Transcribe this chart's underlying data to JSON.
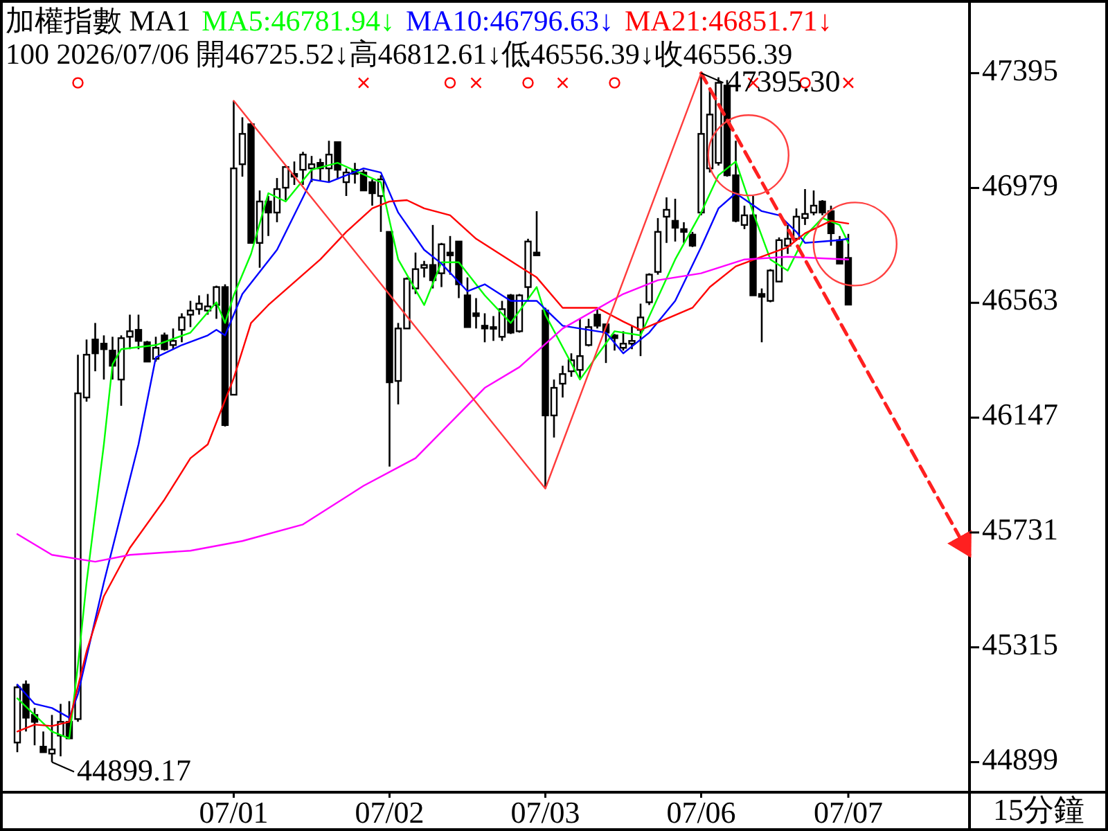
{
  "chart_data": {
    "type": "candlestick",
    "title": "加權指數 MA1",
    "subtitle": "100 2026/07/06 開46725.52↓高46812.61↓低46556.39↓收46556.39",
    "xlabel": "15分鐘",
    "color": "#000000",
    "legend": "top left",
    "ylim": [
      44790,
      47660
    ],
    "yticks": [
      44899,
      45315,
      45731,
      46147,
      46563,
      46979,
      47395
    ],
    "categories": [
      null,
      null,
      null,
      null,
      null,
      null,
      null,
      null,
      null,
      null,
      null,
      null,
      null,
      null,
      null,
      null,
      null,
      null,
      null,
      null,
      null,
      null,
      null,
      null,
      null,
      "07/01",
      null,
      null,
      null,
      null,
      null,
      null,
      null,
      null,
      null,
      null,
      null,
      null,
      null,
      null,
      null,
      null,
      null,
      "07/02",
      null,
      null,
      null,
      null,
      null,
      null,
      null,
      null,
      null,
      null,
      null,
      null,
      null,
      null,
      null,
      null,
      null,
      "07/03",
      null,
      null,
      null,
      null,
      null,
      null,
      null,
      null,
      null,
      null,
      null,
      null,
      null,
      null,
      null,
      null,
      null,
      "07/06",
      null,
      null,
      null,
      null,
      null,
      null,
      null,
      null,
      null,
      null,
      null,
      null,
      null,
      null,
      null,
      null,
      "07/07",
      null,
      null,
      null,
      null,
      null,
      null,
      null,
      null,
      null,
      null,
      null,
      null,
      null,
      null
    ],
    "ohlc": [
      [
        44970,
        45180,
        44935,
        45170
      ],
      [
        45180,
        45195,
        45010,
        45060
      ],
      [
        45070,
        45095,
        44960,
        45045
      ],
      [
        44955,
        45010,
        44935,
        44935
      ],
      [
        44930,
        45070,
        44899.17,
        44945
      ],
      [
        44995,
        45110,
        44920,
        45045
      ],
      [
        45045,
        45120,
        44985,
        44985
      ],
      [
        45055,
        46375,
        45045,
        46235
      ],
      [
        46220,
        46430,
        46205,
        46375
      ],
      [
        46430,
        46490,
        46315,
        46380
      ],
      [
        46415,
        46445,
        46285,
        46395
      ],
      [
        46390,
        46440,
        46285,
        46335
      ],
      [
        46285,
        46445,
        46190,
        46435
      ],
      [
        46440,
        46520,
        46395,
        46460
      ],
      [
        46465,
        46520,
        46395,
        46425
      ],
      [
        46420,
        46425,
        46350,
        46350
      ],
      [
        46360,
        46440,
        46350,
        46400
      ],
      [
        46445,
        46455,
        46390,
        46395
      ],
      [
        46410,
        46470,
        46395,
        46425
      ],
      [
        46465,
        46525,
        46420,
        46510
      ],
      [
        46520,
        46570,
        46475,
        46535
      ],
      [
        46540,
        46590,
        46520,
        46560
      ],
      [
        46535,
        46595,
        46520,
        46550
      ],
      [
        46555,
        46625,
        46505,
        46620
      ],
      [
        46620,
        46630,
        46115,
        46120
      ],
      [
        46230,
        47295,
        46230,
        47050
      ],
      [
        47065,
        47235,
        47020,
        47175
      ],
      [
        47210,
        47215,
        46780,
        46780
      ],
      [
        46780,
        46970,
        46690,
        46930
      ],
      [
        46930,
        46950,
        46805,
        46890
      ],
      [
        46890,
        47015,
        46855,
        46975
      ],
      [
        46980,
        47060,
        46935,
        47055
      ],
      [
        47030,
        47075,
        46990,
        47020
      ],
      [
        47045,
        47110,
        46990,
        47100
      ],
      [
        47050,
        47095,
        47000,
        47065
      ],
      [
        47070,
        47085,
        47005,
        47050
      ],
      [
        47050,
        47150,
        47000,
        47100
      ],
      [
        47145,
        47145,
        47010,
        47045
      ],
      [
        47000,
        47050,
        46950,
        47035
      ],
      [
        47045,
        47070,
        46995,
        47030
      ],
      [
        47035,
        47045,
        46970,
        46970
      ],
      [
        47000,
        47010,
        46915,
        46960
      ],
      [
        46950,
        47025,
        46820,
        47010
      ],
      [
        46820,
        46820,
        45970,
        46275
      ],
      [
        46280,
        46490,
        46195,
        46470
      ],
      [
        46470,
        46655,
        46470,
        46650
      ],
      [
        46615,
        46745,
        46595,
        46685
      ],
      [
        46690,
        46715,
        46655,
        46700
      ],
      [
        46700,
        46845,
        46615,
        46645
      ],
      [
        46670,
        46780,
        46620,
        46775
      ],
      [
        46745,
        46805,
        46665,
        46735
      ],
      [
        46785,
        46785,
        46580,
        46630
      ],
      [
        46590,
        46655,
        46475,
        46475
      ],
      [
        46525,
        46580,
        46470,
        46515
      ],
      [
        46480,
        46525,
        46420,
        46470
      ],
      [
        46475,
        46515,
        46425,
        46470
      ],
      [
        46440,
        46570,
        46425,
        46540
      ],
      [
        46590,
        46595,
        46450,
        46455
      ],
      [
        46460,
        46595,
        46455,
        46590
      ],
      [
        46620,
        46795,
        46570,
        46785
      ],
      [
        46745,
        46895,
        46735,
        46735
      ],
      [
        46535,
        46545,
        45890,
        46155
      ],
      [
        46155,
        46285,
        46075,
        46255
      ],
      [
        46270,
        46335,
        46220,
        46305
      ],
      [
        46315,
        46380,
        46295,
        46355
      ],
      [
        46320,
        46505,
        46290,
        46370
      ],
      [
        46410,
        46505,
        46405,
        46475
      ],
      [
        46520,
        46540,
        46470,
        46480
      ],
      [
        46485,
        46485,
        46345,
        46455
      ],
      [
        46445,
        46450,
        46390,
        46435
      ],
      [
        46400,
        46460,
        46390,
        46415
      ],
      [
        46415,
        46480,
        46395,
        46425
      ],
      [
        46465,
        46560,
        46370,
        46510
      ],
      [
        46565,
        46670,
        46555,
        46665
      ],
      [
        46675,
        46870,
        46665,
        46820
      ],
      [
        46875,
        46945,
        46780,
        46900
      ],
      [
        46860,
        46940,
        46785,
        46835
      ],
      [
        46830,
        46855,
        46780,
        46820
      ],
      [
        46810,
        46820,
        46765,
        46770
      ],
      [
        46890,
        47395.3,
        46880,
        47175
      ],
      [
        47050,
        47335,
        47035,
        47245
      ],
      [
        47070,
        47380,
        47060,
        47360
      ],
      [
        47350,
        47370,
        47020,
        47025
      ],
      [
        47025,
        47150,
        46855,
        46860
      ],
      [
        46845,
        46915,
        46830,
        46880
      ],
      [
        46880,
        46950,
        46590,
        46590
      ],
      [
        46595,
        46615,
        46420,
        46585
      ],
      [
        46570,
        46685,
        46565,
        46680
      ],
      [
        46640,
        46800,
        46640,
        46790
      ],
      [
        46770,
        46845,
        46740,
        46795
      ],
      [
        46795,
        46905,
        46790,
        46875
      ],
      [
        46870,
        46975,
        46845,
        46885
      ],
      [
        46890,
        46970,
        46880,
        46915
      ],
      [
        46930,
        46935,
        46880,
        46890
      ],
      [
        46895,
        46915,
        46770,
        46815
      ],
      [
        46790,
        46805,
        46705,
        46705
      ],
      [
        46725.52,
        46812.61,
        46556.39,
        46556.39
      ],
      null,
      null,
      null,
      null,
      null,
      null,
      null,
      null,
      null,
      null,
      null,
      null,
      null,
      null
    ],
    "series": [
      {
        "name": "MA5:46781.94↓",
        "type": "line",
        "color": "#00ff00",
        "values": [
          45130,
          null,
          null,
          null,
          45010,
          null,
          44985,
          45250,
          45550,
          45800,
          46050,
          46340,
          46395,
          null,
          null,
          null,
          46410,
          null,
          null,
          null,
          46455,
          null,
          null,
          46565,
          46490,
          46590,
          null,
          46740,
          null,
          46960,
          null,
          46930,
          null,
          null,
          47045,
          null,
          null,
          47070,
          null,
          null,
          null,
          null,
          47000,
          null,
          46720,
          null,
          null,
          46555,
          null,
          46710,
          null,
          46710,
          null,
          null,
          46590,
          null,
          null,
          46490,
          null,
          null,
          46620,
          46520,
          null,
          null,
          null,
          46285,
          null,
          null,
          null,
          46460,
          null,
          null,
          46445,
          null,
          null,
          null,
          46720,
          null,
          null,
          46890,
          null,
          47025,
          null,
          47075,
          null,
          46890,
          null,
          46720,
          null,
          46680,
          null,
          46805,
          null,
          46870,
          null,
          46845,
          46780,
          null,
          null,
          null,
          null,
          null,
          null,
          null,
          null,
          null,
          null,
          null,
          null,
          null,
          null
        ]
      },
      {
        "name": "MA10:46796.63↓",
        "type": "line",
        "color": "#0000ff",
        "values": [
          45180,
          null,
          45110,
          null,
          45095,
          null,
          45060,
          45145,
          null,
          null,
          45550,
          null,
          null,
          null,
          46050,
          null,
          46365,
          null,
          null,
          46410,
          null,
          null,
          46445,
          46465,
          46445,
          null,
          46595,
          null,
          null,
          null,
          46755,
          null,
          null,
          46945,
          47010,
          null,
          47000,
          null,
          null,
          null,
          47050,
          null,
          47035,
          null,
          46890,
          null,
          null,
          46755,
          null,
          46705,
          null,
          null,
          46605,
          null,
          46630,
          null,
          null,
          46570,
          null,
          null,
          46570,
          null,
          null,
          46480,
          null,
          null,
          null,
          null,
          46455,
          null,
          46380,
          null,
          null,
          46455,
          null,
          null,
          46570,
          null,
          null,
          46765,
          null,
          46905,
          null,
          46960,
          null,
          null,
          46895,
          null,
          46880,
          null,
          46820,
          46780,
          null,
          null,
          null,
          46790,
          46795,
          null,
          null,
          null,
          null,
          null,
          null,
          null,
          null,
          null,
          null,
          null,
          null,
          null,
          null
        ]
      },
      {
        "name": "MA21:46851.71↓",
        "type": "line",
        "color": "#ff0000",
        "values": [
          45010,
          null,
          45035,
          null,
          45030,
          null,
          45045,
          null,
          45300,
          null,
          45500,
          null,
          null,
          45675,
          null,
          null,
          null,
          45850,
          null,
          null,
          46000,
          null,
          46050,
          null,
          null,
          46290,
          null,
          46490,
          null,
          46555,
          null,
          null,
          null,
          null,
          null,
          46720,
          null,
          null,
          46820,
          null,
          null,
          46905,
          null,
          46930,
          null,
          46935,
          null,
          46905,
          null,
          null,
          46880,
          null,
          null,
          46795,
          null,
          46755,
          null,
          null,
          46695,
          null,
          46655,
          null,
          null,
          46545,
          null,
          null,
          null,
          46545,
          null,
          null,
          46495,
          null,
          46465,
          null,
          null,
          46505,
          null,
          null,
          46545,
          null,
          46620,
          null,
          null,
          46695,
          null,
          null,
          46730,
          null,
          null,
          46765,
          null,
          46815,
          null,
          null,
          46860,
          null,
          46850,
          null,
          null,
          null,
          null,
          null,
          null,
          null,
          null,
          null,
          null,
          null,
          null,
          null,
          null
        ]
      },
      {
        "type": "line",
        "color": "#ff00ff",
        "values": [
          45725,
          null,
          null,
          null,
          45650,
          null,
          null,
          null,
          null,
          45625,
          null,
          null,
          null,
          45650,
          null,
          null,
          null,
          null,
          null,
          null,
          45665,
          null,
          null,
          null,
          null,
          null,
          45700,
          null,
          null,
          null,
          null,
          null,
          null,
          45760,
          null,
          null,
          null,
          null,
          null,
          null,
          45900,
          null,
          null,
          null,
          null,
          null,
          46000,
          null,
          null,
          null,
          null,
          null,
          null,
          null,
          46255,
          null,
          null,
          null,
          46330,
          null,
          null,
          null,
          null,
          46470,
          null,
          null,
          null,
          null,
          null,
          null,
          46595,
          null,
          null,
          null,
          46645,
          null,
          null,
          null,
          null,
          46670,
          null,
          null,
          null,
          null,
          46720,
          null,
          null,
          null,
          null,
          46730,
          null,
          null,
          null,
          null,
          null,
          null,
          46720,
          null,
          null,
          null,
          null,
          null,
          null,
          null,
          null,
          null,
          null,
          null,
          null,
          null,
          null
        ]
      },
      {
        "type": "line",
        "color": "#ff3b3b",
        "values": [
          null,
          null,
          null,
          null,
          null,
          null,
          null,
          null,
          null,
          null,
          null,
          null,
          null,
          null,
          null,
          null,
          null,
          null,
          null,
          null,
          null,
          null,
          null,
          null,
          null,
          47295,
          null,
          null,
          null,
          null,
          null,
          null,
          null,
          null,
          null,
          null,
          null,
          null,
          null,
          null,
          null,
          null,
          null,
          null,
          null,
          null,
          null,
          null,
          null,
          null,
          null,
          null,
          null,
          null,
          null,
          null,
          null,
          null,
          null,
          null,
          null,
          45890,
          null,
          null,
          null,
          null,
          null,
          null,
          null,
          null,
          null,
          null,
          null,
          null,
          null,
          null,
          null,
          null,
          null,
          47395,
          null,
          null,
          null,
          null,
          null,
          null,
          null,
          null,
          null,
          null,
          null,
          null,
          null,
          null,
          null,
          null,
          null,
          null,
          null,
          null,
          null,
          null,
          null,
          null,
          null,
          null,
          null,
          null,
          null,
          null,
          null
        ]
      },
      {
        "type": "line",
        "color": "#ff2020",
        "line_style": "dashed",
        "values": [
          null,
          null,
          null,
          null,
          null,
          null,
          null,
          null,
          null,
          null,
          null,
          null,
          null,
          null,
          null,
          null,
          null,
          null,
          null,
          null,
          null,
          null,
          null,
          null,
          null,
          null,
          null,
          null,
          null,
          null,
          null,
          null,
          null,
          null,
          null,
          null,
          null,
          null,
          null,
          null,
          null,
          null,
          null,
          null,
          null,
          null,
          null,
          null,
          null,
          null,
          null,
          null,
          null,
          null,
          null,
          null,
          null,
          null,
          null,
          null,
          null,
          null,
          null,
          null,
          null,
          null,
          null,
          null,
          null,
          null,
          null,
          null,
          null,
          null,
          null,
          null,
          null,
          null,
          null,
          47395,
          null,
          null,
          null,
          null,
          null,
          null,
          null,
          null,
          null,
          null,
          null,
          null,
          null,
          null,
          null,
          null,
          null,
          null,
          null,
          null,
          null,
          null,
          null,
          null,
          null,
          null,
          null,
          null,
          null,
          null,
          45650
        ]
      },
      {
        "type": "scatter",
        "marker": "circle",
        "color": "#ff0000",
        "values": [
          null,
          null,
          null,
          null,
          null,
          null,
          null,
          47360,
          null,
          null,
          null,
          null,
          null,
          null,
          null,
          null,
          null,
          null,
          null,
          null,
          null,
          null,
          null,
          null,
          null,
          null,
          null,
          null,
          null,
          null,
          null,
          null,
          null,
          null,
          null,
          null,
          null,
          null,
          null,
          null,
          null,
          null,
          null,
          null,
          null,
          null,
          null,
          null,
          null,
          null,
          47360,
          null,
          null,
          null,
          null,
          null,
          null,
          null,
          null,
          47360,
          null,
          null,
          null,
          null,
          null,
          null,
          null,
          null,
          null,
          47360,
          null,
          null,
          null,
          null,
          null,
          null,
          null,
          null,
          null,
          null,
          null,
          null,
          null,
          null,
          null,
          null,
          null,
          null,
          null,
          null,
          null,
          47360,
          null,
          null,
          null,
          null,
          null,
          null,
          null,
          null,
          null,
          null,
          null,
          null,
          null,
          null,
          null,
          null,
          null,
          null,
          null
        ]
      },
      {
        "type": "scatter",
        "marker": "cross",
        "color": "#ff0000",
        "values": [
          null,
          null,
          null,
          null,
          null,
          null,
          null,
          null,
          null,
          null,
          null,
          null,
          null,
          null,
          null,
          null,
          null,
          null,
          null,
          null,
          null,
          null,
          null,
          null,
          null,
          null,
          null,
          null,
          null,
          null,
          null,
          null,
          null,
          null,
          null,
          null,
          null,
          null,
          null,
          null,
          47360,
          null,
          null,
          null,
          null,
          null,
          null,
          null,
          null,
          null,
          null,
          null,
          null,
          47360,
          null,
          null,
          null,
          null,
          null,
          null,
          null,
          null,
          null,
          47360,
          null,
          null,
          null,
          null,
          null,
          null,
          null,
          null,
          null,
          null,
          null,
          null,
          null,
          null,
          null,
          null,
          null,
          null,
          null,
          null,
          null,
          47360,
          null,
          null,
          null,
          null,
          null,
          null,
          null,
          null,
          null,
          null,
          47360,
          null,
          null,
          null,
          null,
          null,
          null,
          null,
          null,
          null,
          null,
          null,
          null,
          null,
          null
        ]
      }
    ],
    "annotations": [
      "47395.30",
      "44899.17"
    ]
  }
}
